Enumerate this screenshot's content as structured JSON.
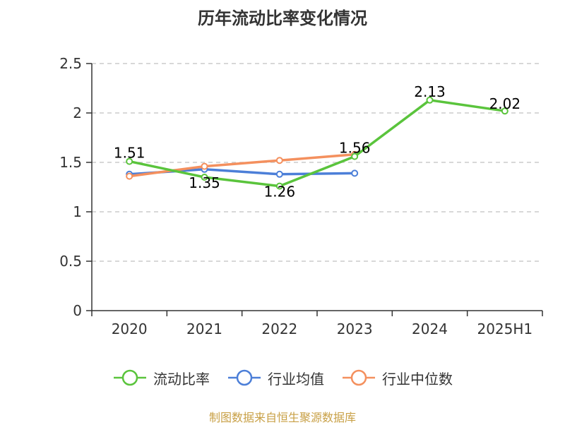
{
  "title": "历年流动比率变化情况",
  "source": "制图数据来自恒生聚源数据库",
  "chart_data": {
    "type": "line",
    "categories": [
      "2020",
      "2021",
      "2022",
      "2023",
      "2024",
      "2025H1"
    ],
    "ylim": [
      0,
      2.5
    ],
    "yticks": [
      "0",
      "0.5",
      "1",
      "1.5",
      "2",
      "2.5"
    ],
    "grid": true,
    "legend_position": "bottom",
    "series": [
      {
        "name": "流动比率",
        "color": "#5ac43c",
        "values": [
          1.51,
          1.35,
          1.26,
          1.56,
          2.13,
          2.02
        ],
        "labels": [
          "1.51",
          "1.35",
          "1.26",
          "1.56",
          "2.13",
          "2.02"
        ]
      },
      {
        "name": "行业均值",
        "color": "#4c7fd8",
        "values": [
          1.38,
          1.43,
          1.38,
          1.39,
          null,
          null
        ]
      },
      {
        "name": "行业中位数",
        "color": "#f4905e",
        "values": [
          1.36,
          1.46,
          1.52,
          1.58,
          null,
          null
        ]
      }
    ]
  }
}
